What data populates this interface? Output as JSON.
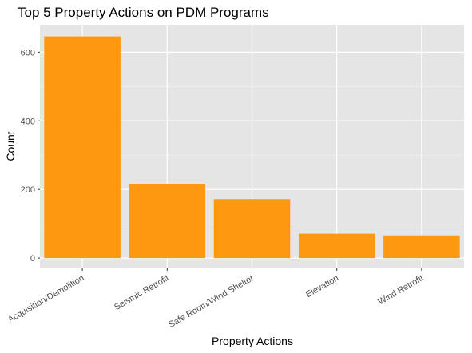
{
  "chart_data": {
    "type": "bar",
    "title": "Top 5 Property Actions on PDM Programs",
    "xlabel": "Property Actions",
    "ylabel": "Count",
    "categories": [
      "Acquisition/Demolition",
      "Seismic Retrofit",
      "Safe Room/Wind Shelter",
      "Elevation",
      "Wind Retrofit"
    ],
    "values": [
      646,
      215,
      172,
      71,
      66
    ],
    "ylim": [
      -30,
      680
    ],
    "yticks": [
      0,
      200,
      400,
      600
    ],
    "grid": true,
    "legend": "none",
    "colors": {
      "bar": "#FF9811",
      "panel": "#E5E5E5",
      "grid_major": "#FFFFFF",
      "grid_minor": "#F2F2F2"
    }
  }
}
